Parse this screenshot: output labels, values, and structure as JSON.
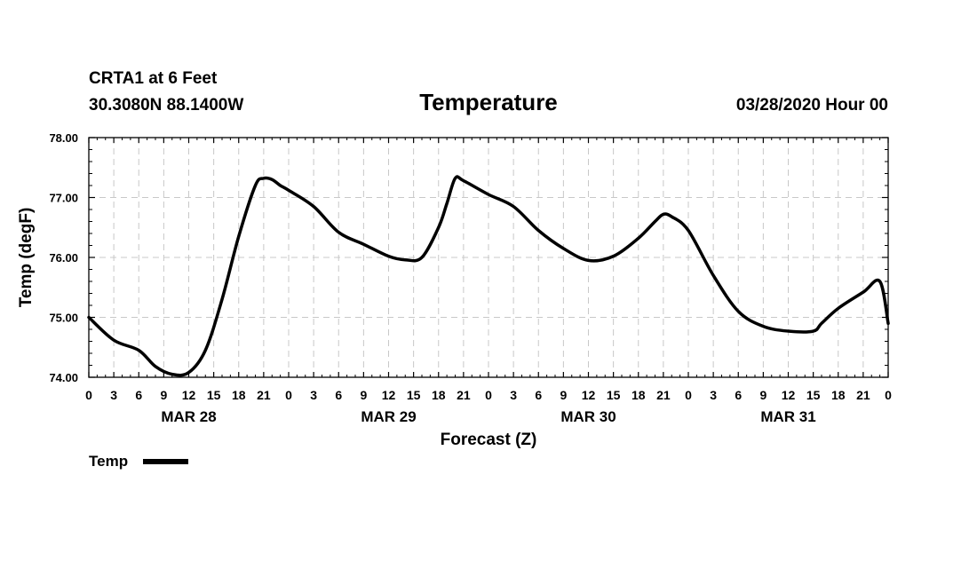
{
  "header": {
    "station": "CRTA1 at 6 Feet",
    "location": "30.3080N 88.1400W",
    "title": "Temperature",
    "run": "03/28/2020 Hour 00"
  },
  "legend": {
    "label": "Temp",
    "color": "#000000"
  },
  "chart_data": {
    "type": "line",
    "title": "Temperature",
    "xlabel": "Forecast (Z)",
    "ylabel": "Temp (degF)",
    "xlim": [
      0,
      96
    ],
    "ylim": [
      74.0,
      78.0
    ],
    "y_ticks": [
      "74.00",
      "75.00",
      "76.00",
      "77.00",
      "78.00"
    ],
    "x_tick_labels": [
      "0",
      "3",
      "6",
      "9",
      "12",
      "15",
      "18",
      "21",
      "0",
      "3",
      "6",
      "9",
      "12",
      "15",
      "18",
      "21",
      "0",
      "3",
      "6",
      "9",
      "12",
      "15",
      "18",
      "21",
      "0",
      "3",
      "6",
      "9",
      "12",
      "15",
      "18",
      "21",
      "0"
    ],
    "date_labels": [
      {
        "label": "MAR 28",
        "hour": 12
      },
      {
        "label": "MAR 29",
        "hour": 36
      },
      {
        "label": "MAR 30",
        "hour": 60
      },
      {
        "label": "MAR 31",
        "hour": 84
      }
    ],
    "grid": true,
    "series": [
      {
        "name": "Temp",
        "color": "#000000",
        "x": [
          0,
          3,
          6,
          8,
          10,
          12,
          14,
          16,
          18,
          20,
          21,
          22,
          23,
          24,
          27,
          30,
          33,
          36,
          38,
          40,
          42,
          43,
          44,
          45,
          48,
          51,
          54,
          57,
          60,
          63,
          66,
          68,
          69,
          70,
          72,
          75,
          78,
          81,
          84,
          87,
          88,
          90,
          93,
          95,
          96
        ],
        "values": [
          75.0,
          74.62,
          74.45,
          74.18,
          74.05,
          74.08,
          74.45,
          75.3,
          76.35,
          77.2,
          77.32,
          77.3,
          77.2,
          77.12,
          76.85,
          76.42,
          76.22,
          76.02,
          75.96,
          76.0,
          76.5,
          76.9,
          77.32,
          77.28,
          77.05,
          76.85,
          76.45,
          76.15,
          75.95,
          76.02,
          76.32,
          76.6,
          76.72,
          76.68,
          76.45,
          75.7,
          75.1,
          74.85,
          74.77,
          74.77,
          74.9,
          75.15,
          75.42,
          75.6,
          74.9
        ]
      }
    ]
  }
}
